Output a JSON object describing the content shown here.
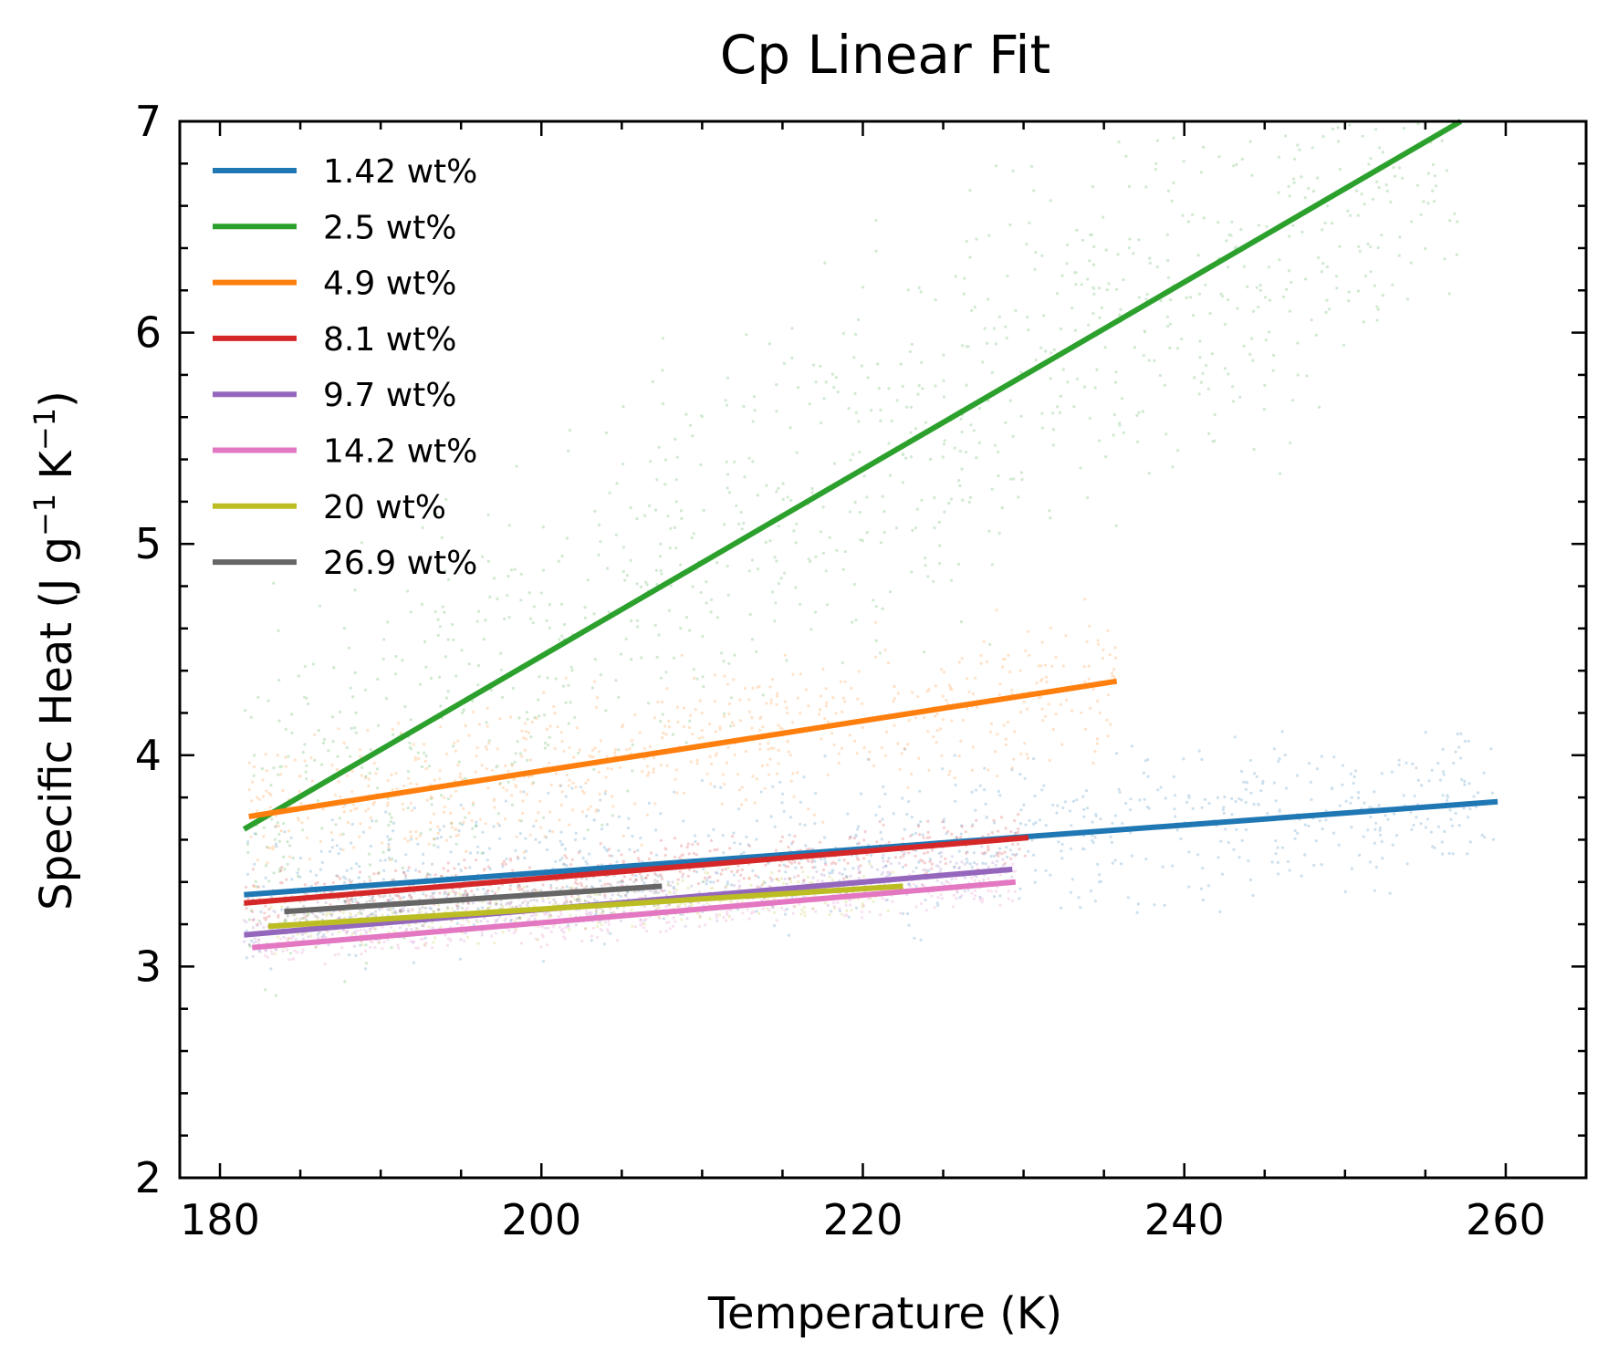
{
  "chart_data": {
    "type": "line",
    "title": "Cp Linear Fit",
    "xlabel": "Temperature (K)",
    "ylabel": "Specific Heat (J g^{-1} K^{-1})",
    "ylabel_parts": {
      "main": "Specific Heat (J g",
      "sup1": "−1",
      "mid": " K",
      "sup2": "−1",
      "end": ")"
    },
    "xlim": [
      177.5,
      265
    ],
    "ylim": [
      2,
      7
    ],
    "xticks": [
      180,
      200,
      220,
      240,
      260
    ],
    "yticks": [
      2,
      3,
      4,
      5,
      6,
      7
    ],
    "grid": false,
    "legend_position": "top-left",
    "series": [
      {
        "name": "1.42 wt%",
        "color": "#1f77b4",
        "x": [
          181.5,
          259.5
        ],
        "y": [
          3.34,
          3.78
        ]
      },
      {
        "name": "2.5 wt%",
        "color": "#2ca02c",
        "x": [
          181.5,
          257.2
        ],
        "y": [
          3.65,
          7.0
        ]
      },
      {
        "name": "4.9 wt%",
        "color": "#ff7f0e",
        "x": [
          181.8,
          235.8
        ],
        "y": [
          3.71,
          4.35
        ]
      },
      {
        "name": "8.1 wt%",
        "color": "#d62728",
        "x": [
          181.5,
          230.3
        ],
        "y": [
          3.3,
          3.61
        ]
      },
      {
        "name": "9.7 wt%",
        "color": "#9467bd",
        "x": [
          181.5,
          229.3
        ],
        "y": [
          3.15,
          3.46
        ]
      },
      {
        "name": "14.2 wt%",
        "color": "#e377c2",
        "x": [
          182.0,
          229.5
        ],
        "y": [
          3.09,
          3.4
        ]
      },
      {
        "name": "20 wt%",
        "color": "#bcbd22",
        "x": [
          183.0,
          222.5
        ],
        "y": [
          3.19,
          3.38
        ]
      },
      {
        "name": "26.9 wt%",
        "color": "#666666",
        "x": [
          184.0,
          207.5
        ],
        "y": [
          3.26,
          3.38
        ]
      }
    ]
  }
}
